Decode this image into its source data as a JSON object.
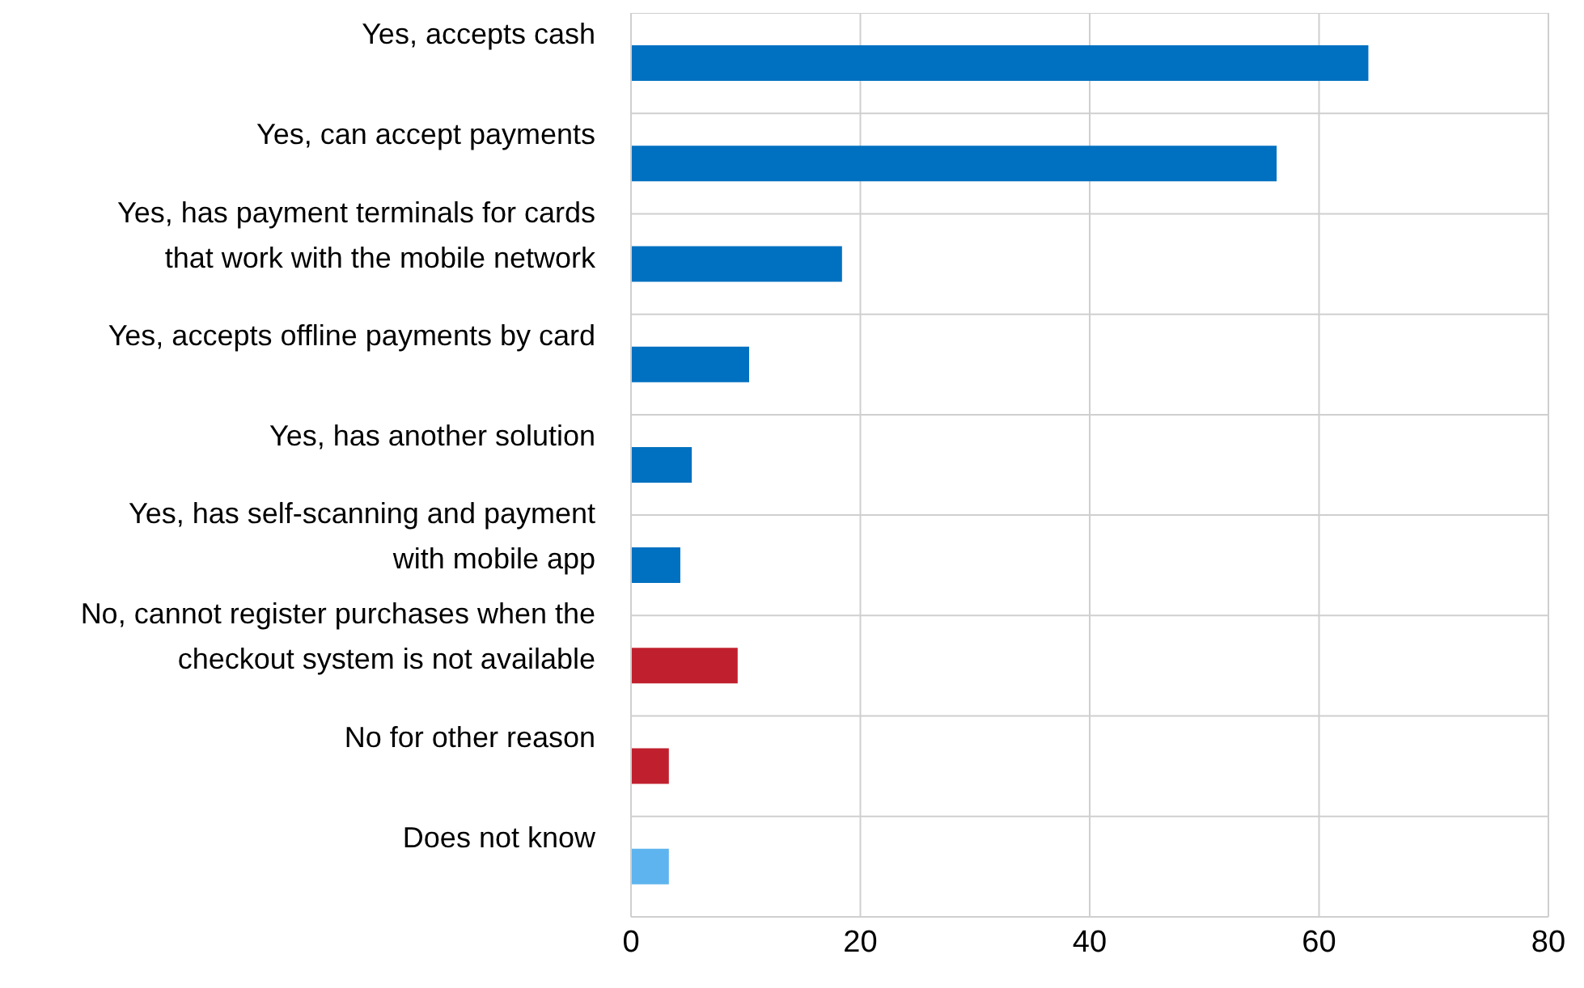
{
  "chart_data": {
    "type": "bar",
    "orientation": "horizontal",
    "categories": [
      "Yes, accepts cash",
      "Yes, can accept payments",
      "Yes, has payment terminals for cards that work with the mobile network",
      "Yes, accepts offline payments by card",
      "Yes, has another solution",
      "Yes, has self-scanning and payment with mobile app",
      "No, cannot register purchases when the checkout system is not available",
      "No for other reason",
      "Does not know"
    ],
    "values": [
      64.3,
      56.3,
      18.4,
      10.3,
      5.3,
      4.3,
      9.3,
      3.3,
      3.3
    ],
    "colors": [
      "#0070c0",
      "#0070c0",
      "#0070c0",
      "#0070c0",
      "#0070c0",
      "#0070c0",
      "#c0202e",
      "#c0202e",
      "#5eb4ee"
    ],
    "xlim": [
      0,
      80
    ],
    "xticks": [
      0,
      20,
      40,
      60,
      80
    ],
    "grid": true
  }
}
